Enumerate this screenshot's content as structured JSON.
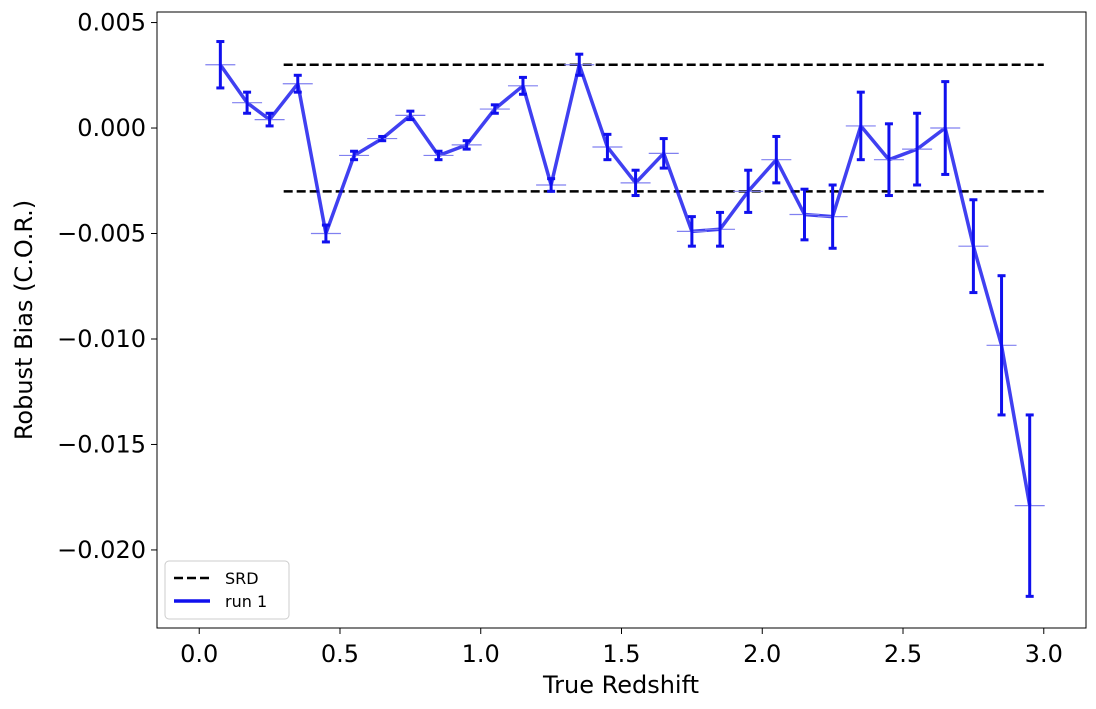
{
  "chart_data": {
    "type": "line",
    "xlabel": "True Redshift",
    "ylabel": "Robust Bias (C.O.R.)",
    "xlim": [
      -0.15,
      3.15
    ],
    "ylim": [
      -0.0237,
      0.0055
    ],
    "x_ticks": [
      0.0,
      0.5,
      1.0,
      1.5,
      2.0,
      2.5,
      3.0
    ],
    "x_tick_labels": [
      "0.0",
      "0.5",
      "1.0",
      "1.5",
      "2.0",
      "2.5",
      "3.0"
    ],
    "y_ticks": [
      0.005,
      0.0,
      -0.005,
      -0.01,
      -0.015,
      -0.02
    ],
    "y_tick_labels": [
      "0.005",
      "0.000",
      "−0.005",
      "−0.010",
      "−0.015",
      "−0.020"
    ],
    "grid": false,
    "legend_position": "lower-left",
    "reference_lines": {
      "name": "SRD",
      "style": "dashed",
      "color": "#000000",
      "x_range": [
        0.3,
        3.0
      ],
      "y_values": [
        0.003,
        -0.003
      ]
    },
    "series": [
      {
        "name": "run 1",
        "color": "#1010ee",
        "x": [
          0.075,
          0.17,
          0.25,
          0.35,
          0.45,
          0.55,
          0.65,
          0.75,
          0.85,
          0.95,
          1.05,
          1.15,
          1.25,
          1.35,
          1.45,
          1.55,
          1.65,
          1.75,
          1.85,
          1.95,
          2.05,
          2.15,
          2.25,
          2.35,
          2.45,
          2.55,
          2.65,
          2.75,
          2.85,
          2.95
        ],
        "y": [
          0.003,
          0.0012,
          0.0004,
          0.0021,
          -0.005,
          -0.0013,
          -0.0005,
          0.0006,
          -0.0013,
          -0.0008,
          0.0009,
          0.002,
          -0.0027,
          0.003,
          -0.0009,
          -0.0026,
          -0.0012,
          -0.0049,
          -0.0048,
          -0.003,
          -0.0015,
          -0.0041,
          -0.0042,
          0.0001,
          -0.0015,
          -0.001,
          0.0,
          -0.0056,
          -0.0103,
          -0.0179
        ],
        "err": [
          0.0011,
          0.0005,
          0.0003,
          0.0004,
          0.0004,
          0.0002,
          0.0001,
          0.0002,
          0.0002,
          0.0002,
          0.0002,
          0.0004,
          0.0003,
          0.0005,
          0.0006,
          0.0006,
          0.0007,
          0.0007,
          0.0008,
          0.001,
          0.0011,
          0.0012,
          0.0015,
          0.0016,
          0.0017,
          0.0017,
          0.0022,
          0.0022,
          0.0033,
          0.0043
        ]
      }
    ]
  }
}
